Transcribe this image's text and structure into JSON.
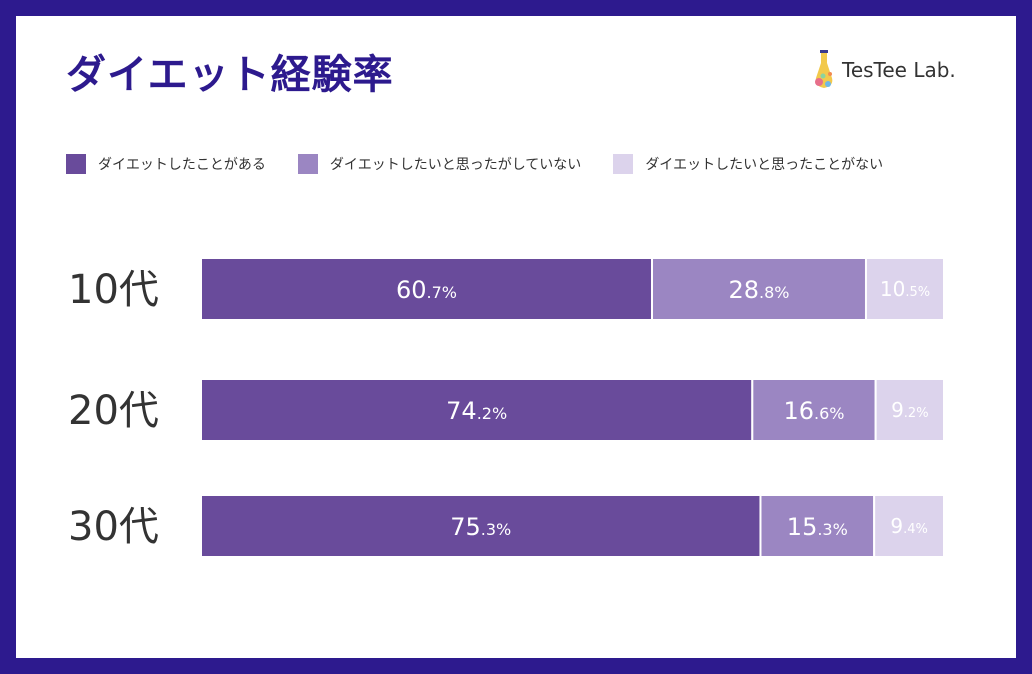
{
  "header": {
    "title": "ダイエット経験率",
    "brand_name": "TesTee Lab."
  },
  "colors": {
    "frame": "#2d1a8e",
    "title": "#2d1a8e"
  },
  "chart_data": {
    "type": "bar",
    "orientation": "horizontal",
    "stacked": true,
    "categories": [
      "10代",
      "20代",
      "30代"
    ],
    "series": [
      {
        "name": "ダイエットしたことがある",
        "values": [
          60.7,
          74.2,
          75.3
        ],
        "color": "#694b9b"
      },
      {
        "name": "ダイエットしたいと思ったがしていない",
        "values": [
          28.8,
          16.6,
          15.3
        ],
        "color": "#9b86c2"
      },
      {
        "name": "ダイエットしたいと思ったことがない",
        "values": [
          10.5,
          9.2,
          9.4
        ],
        "color": "#dcd3ec"
      }
    ],
    "unit": "%",
    "xlim": [
      0,
      100
    ],
    "legend_position": "top",
    "grid": false,
    "title": "ダイエット経験率"
  }
}
